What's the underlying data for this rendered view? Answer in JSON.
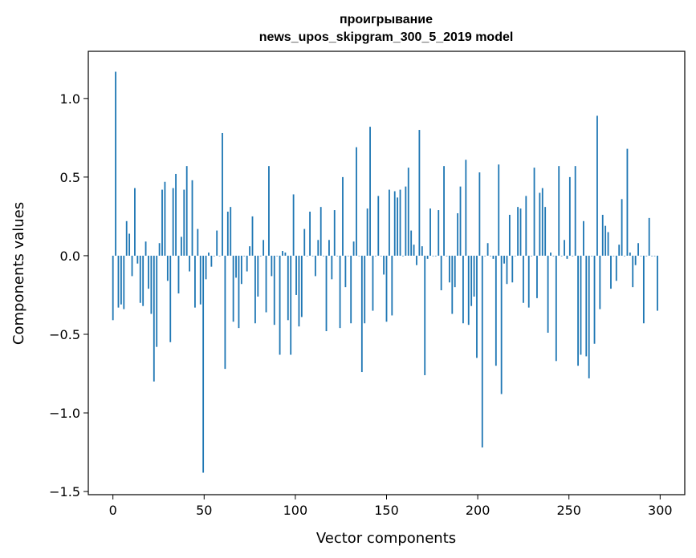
{
  "chart_data": {
    "type": "bar",
    "title": "проигрывание",
    "subtitle": "news_upos_skipgram_300_5_2019 model",
    "xlabel": "Vector components",
    "ylabel": "Components values",
    "xlim": [
      -13.5,
      313.5
    ],
    "ylim": [
      -1.52,
      1.3
    ],
    "xticks": [
      0,
      50,
      100,
      150,
      200,
      250,
      300
    ],
    "yticks": [
      -1.5,
      -1.0,
      -0.5,
      0.0,
      0.5,
      1.0
    ],
    "ytick_labels": [
      "−1.5",
      "−1.0",
      "−0.5",
      "0.0",
      "0.5",
      "1.0"
    ],
    "bar_color": "#1f77b4",
    "grid": false,
    "x_start": 0,
    "values": [
      -0.41,
      1.17,
      -0.33,
      -0.31,
      -0.34,
      0.22,
      0.14,
      -0.13,
      0.43,
      -0.05,
      -0.3,
      -0.32,
      0.09,
      -0.21,
      -0.37,
      -0.8,
      -0.58,
      0.08,
      0.42,
      0.47,
      -0.16,
      -0.55,
      0.43,
      0.52,
      -0.24,
      0.12,
      0.42,
      0.57,
      -0.1,
      0.48,
      -0.33,
      0.17,
      -0.31,
      -1.38,
      -0.15,
      0.02,
      -0.07,
      0.0,
      0.16,
      0.0,
      0.78,
      -0.72,
      0.28,
      0.31,
      -0.42,
      -0.14,
      -0.46,
      -0.18,
      0.0,
      -0.1,
      0.06,
      0.25,
      -0.43,
      -0.26,
      0.0,
      0.1,
      -0.36,
      0.57,
      -0.13,
      -0.44,
      0.0,
      -0.63,
      0.03,
      0.02,
      -0.41,
      -0.63,
      0.39,
      -0.25,
      -0.45,
      -0.39,
      0.17,
      0.0,
      0.28,
      0.0,
      -0.13,
      0.1,
      0.31,
      0.0,
      -0.48,
      0.1,
      -0.15,
      0.29,
      0.0,
      -0.46,
      0.5,
      -0.2,
      0.0,
      -0.43,
      0.09,
      0.69,
      0.0,
      -0.74,
      -0.43,
      0.3,
      0.82,
      -0.35,
      0.0,
      0.38,
      0.0,
      -0.12,
      -0.42,
      0.42,
      -0.38,
      0.41,
      0.37,
      0.42,
      0.0,
      0.44,
      0.56,
      0.16,
      0.07,
      -0.06,
      0.8,
      0.06,
      -0.76,
      -0.02,
      0.3,
      0.0,
      0.0,
      0.29,
      -0.22,
      0.57,
      0.0,
      -0.17,
      -0.37,
      -0.2,
      0.27,
      0.44,
      -0.43,
      0.61,
      -0.44,
      -0.32,
      -0.26,
      -0.65,
      0.53,
      -1.22,
      0.0,
      0.08,
      0.0,
      -0.02,
      -0.7,
      0.58,
      -0.88,
      -0.05,
      -0.18,
      0.26,
      -0.17,
      0.0,
      0.31,
      0.3,
      -0.3,
      0.38,
      -0.33,
      0.0,
      0.56,
      -0.27,
      0.4,
      0.43,
      0.31,
      -0.49,
      0.02,
      0.0,
      -0.67,
      0.57,
      0.0,
      0.1,
      -0.02,
      0.5,
      0.0,
      0.57,
      -0.7,
      -0.63,
      0.22,
      -0.64,
      -0.78,
      0.0,
      -0.56,
      0.89,
      -0.34,
      0.26,
      0.19,
      0.15,
      -0.21,
      0.0,
      -0.16,
      0.07,
      0.36,
      0.0,
      0.68,
      0.02,
      -0.2,
      -0.06,
      0.08,
      0.0,
      -0.43,
      0.0,
      0.24,
      0.0,
      0.0,
      -0.35
    ],
    "values_note_omitted": false
  }
}
